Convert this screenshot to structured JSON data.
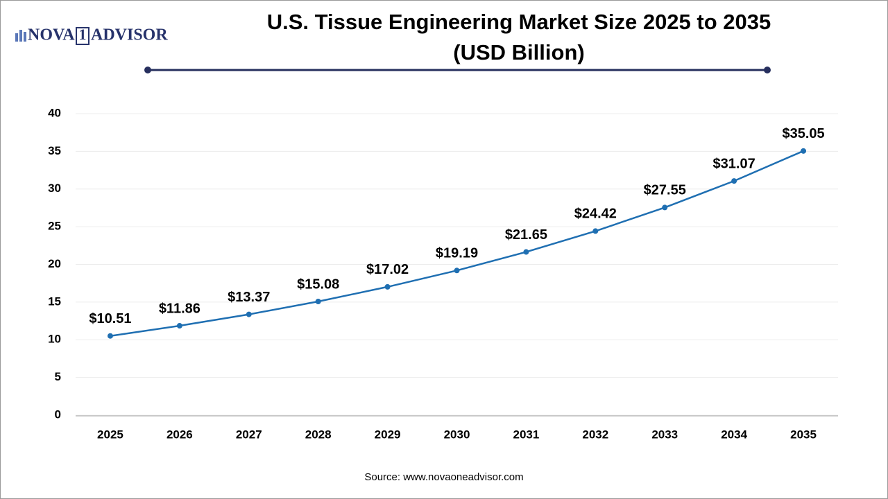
{
  "logo": {
    "left": "NOVA",
    "mark": "1",
    "right": "ADVISOR"
  },
  "chart_data": {
    "type": "line",
    "title": "U.S. Tissue Engineering Market Size 2025 to 2035",
    "subtitle": "(USD Billion)",
    "categories": [
      "2025",
      "2026",
      "2027",
      "2028",
      "2029",
      "2030",
      "2031",
      "2032",
      "2033",
      "2034",
      "2035"
    ],
    "values": [
      10.51,
      11.86,
      13.37,
      15.08,
      17.02,
      19.19,
      21.65,
      24.42,
      27.55,
      31.07,
      35.05
    ],
    "value_labels": [
      "$10.51",
      "$11.86",
      "$13.37",
      "$15.08",
      "$17.02",
      "$19.19",
      "$21.65",
      "$24.42",
      "$27.55",
      "$31.07",
      "$35.05"
    ],
    "color": "#1f6fb2",
    "ylim": [
      0,
      40
    ],
    "yticks": [
      0,
      5,
      10,
      15,
      20,
      25,
      30,
      35,
      40
    ],
    "grid": true,
    "source": "Source: www.novaoneadvisor.com"
  }
}
